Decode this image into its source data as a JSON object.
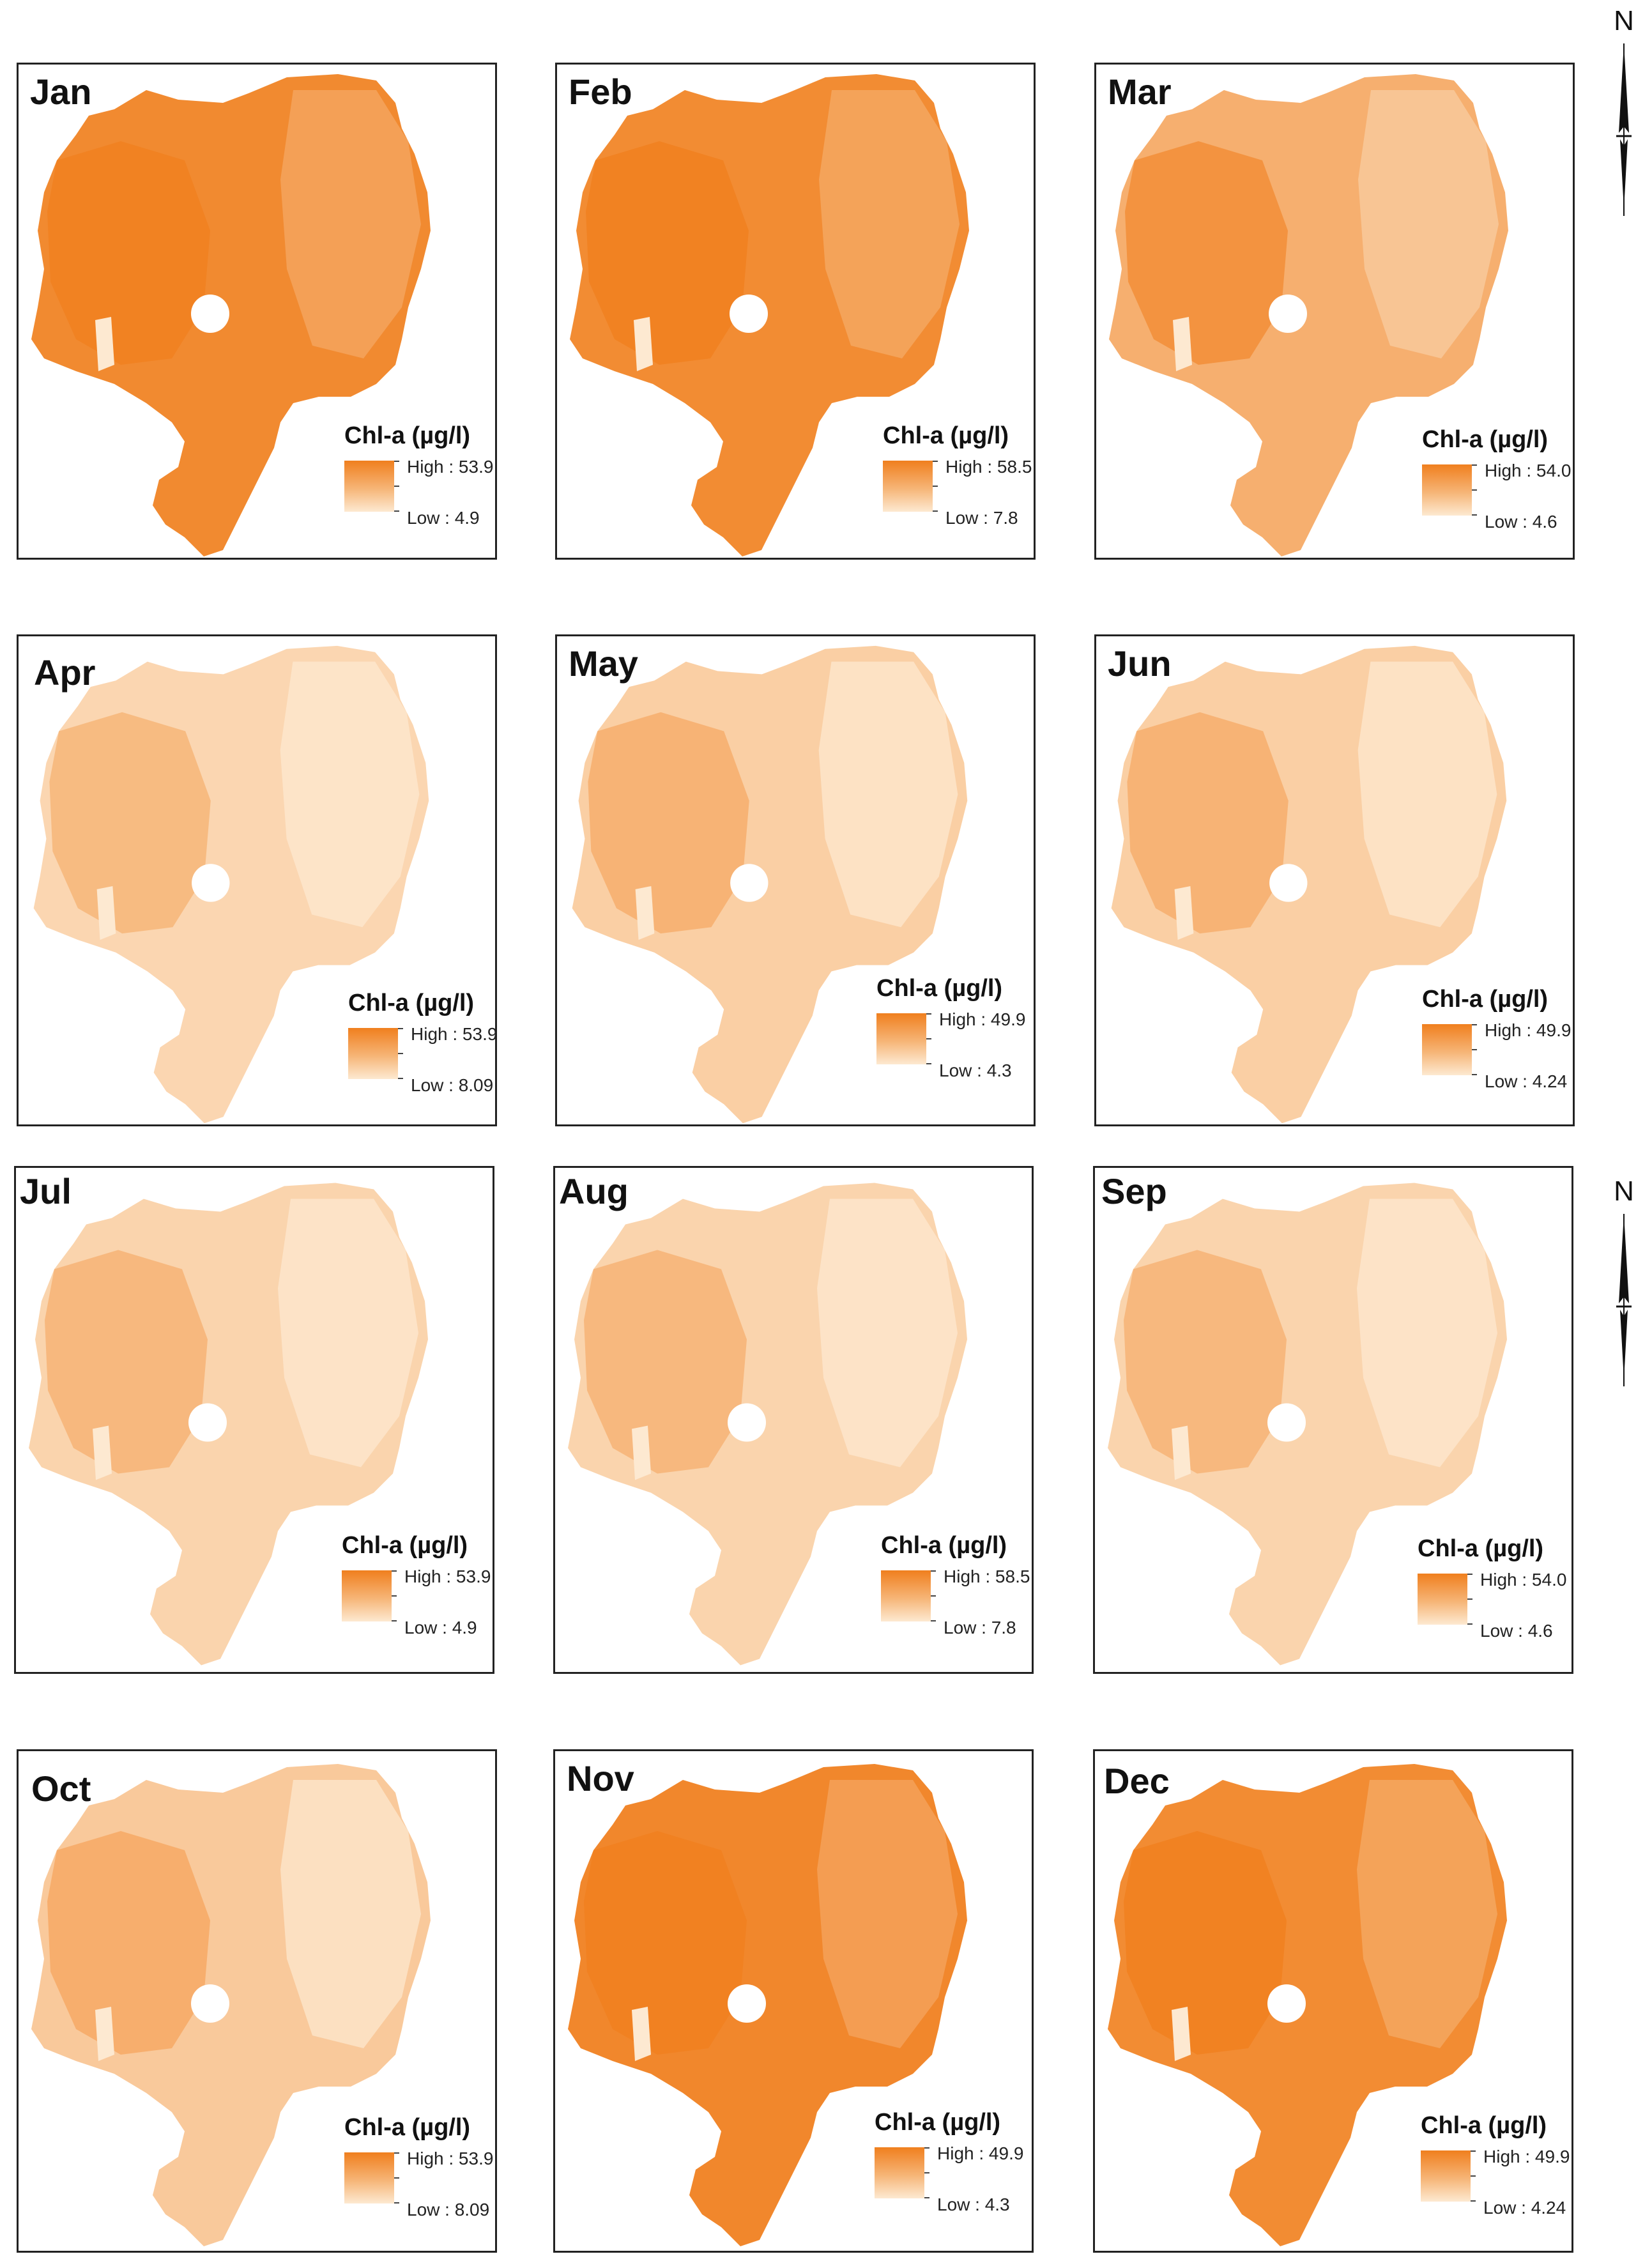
{
  "legend_title": "Chl-a (µg/l)",
  "north_label": "N",
  "colors": {
    "high": "#f07f1e",
    "mid": "#f6b577",
    "low": "#fde9d1"
  },
  "panels": [
    {
      "month": "Jan",
      "high": "High : 53.9",
      "low": "Low : 4.9",
      "shade": 0.9
    },
    {
      "month": "Feb",
      "high": "High : 58.5",
      "low": "Low : 7.8",
      "shade": 0.88
    },
    {
      "month": "Mar",
      "high": "High : 54.0",
      "low": "Low : 4.6",
      "shade": 0.55
    },
    {
      "month": "Apr",
      "high": "High : 53.9",
      "low": "Low : 8.09",
      "shade": 0.18
    },
    {
      "month": "May",
      "high": "High : 49.9",
      "low": "Low : 4.3",
      "shade": 0.25
    },
    {
      "month": "Jun",
      "high": "High : 49.9",
      "low": "Low : 4.24",
      "shade": 0.25
    },
    {
      "month": "Jul",
      "high": "High : 53.9",
      "low": "Low : 4.9",
      "shade": 0.2
    },
    {
      "month": "Aug",
      "high": "High : 58.5",
      "low": "Low : 7.8",
      "shade": 0.2
    },
    {
      "month": "Sep",
      "high": "High : 54.0",
      "low": "Low : 4.6",
      "shade": 0.2
    },
    {
      "month": "Oct",
      "high": "High : 53.9",
      "low": "Low : 8.09",
      "shade": 0.3
    },
    {
      "month": "Nov",
      "high": "High : 49.9",
      "low": "Low : 4.3",
      "shade": 0.92
    },
    {
      "month": "Dec",
      "high": "High : 49.9",
      "low": "Low : 4.24",
      "shade": 0.88
    }
  ]
}
